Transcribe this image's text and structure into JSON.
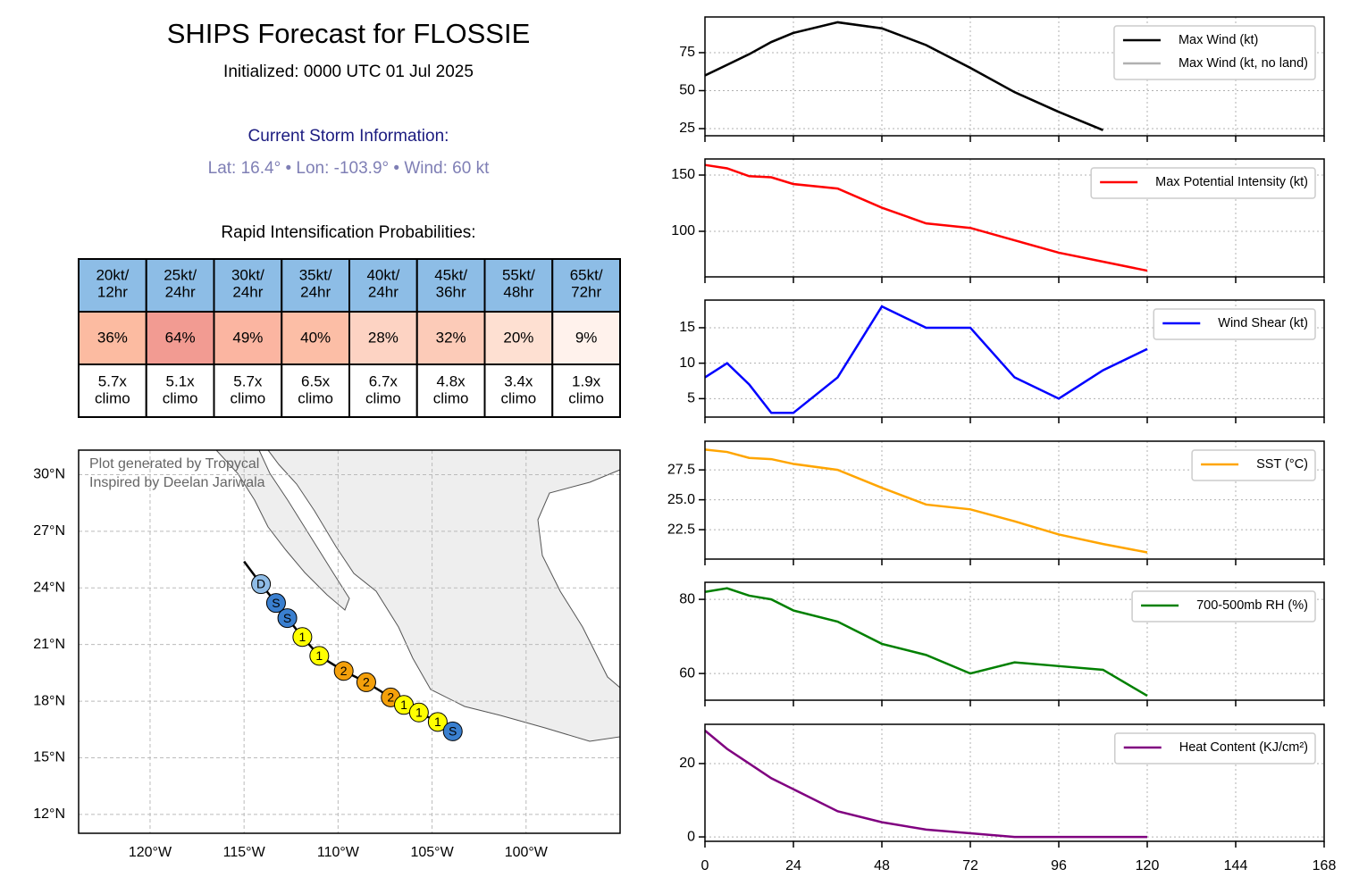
{
  "header": {
    "title": "SHIPS Forecast for FLOSSIE",
    "initialized": "Initialized: 0000 UTC 01 Jul 2025",
    "storm_heading": "Current Storm Information:",
    "storm_info": "Lat: 16.4° • Lon: -103.9° • Wind: 60 kt",
    "table_title": "Rapid Intensification Probabilities:"
  },
  "table": {
    "header": [
      [
        "20kt/",
        "12hr"
      ],
      [
        "25kt/",
        "24hr"
      ],
      [
        "30kt/",
        "24hr"
      ],
      [
        "35kt/",
        "24hr"
      ],
      [
        "40kt/",
        "24hr"
      ],
      [
        "45kt/",
        "36hr"
      ],
      [
        "55kt/",
        "48hr"
      ],
      [
        "65kt/",
        "72hr"
      ]
    ],
    "header_color": "#8dbde6",
    "probabilities": [
      "36%",
      "64%",
      "49%",
      "40%",
      "28%",
      "32%",
      "20%",
      "9%"
    ],
    "probability_colors": [
      "#fcbba1",
      "#f29b92",
      "#fbb5a1",
      "#fcbea6",
      "#fdd3c3",
      "#fccbb8",
      "#fee0d2",
      "#fff2ec"
    ],
    "climo": [
      [
        "5.7x",
        "climo"
      ],
      [
        "5.1x",
        "climo"
      ],
      [
        "5.7x",
        "climo"
      ],
      [
        "6.5x",
        "climo"
      ],
      [
        "6.7x",
        "climo"
      ],
      [
        "4.8x",
        "climo"
      ],
      [
        "3.4x",
        "climo"
      ],
      [
        "1.9x",
        "climo"
      ]
    ]
  },
  "map": {
    "texts": [
      "Plot generated by Tropycal",
      "Inspired by Deelan Jariwala"
    ],
    "xlim": [
      -123.8,
      -95
    ],
    "ylim": [
      11.0,
      31.3
    ],
    "xticks": [
      {
        "value": -120,
        "label": "120°W"
      },
      {
        "value": -115,
        "label": "115°W"
      },
      {
        "value": -110,
        "label": "110°W"
      },
      {
        "value": -105,
        "label": "105°W"
      },
      {
        "value": -100,
        "label": "100°W"
      }
    ],
    "yticks": [
      {
        "value": 12,
        "label": "12°N"
      },
      {
        "value": 15,
        "label": "15°N"
      },
      {
        "value": 18,
        "label": "18°N"
      },
      {
        "value": 21,
        "label": "21°N"
      },
      {
        "value": 24,
        "label": "24°N"
      },
      {
        "value": 27,
        "label": "27°N"
      },
      {
        "value": 30,
        "label": "30°N"
      }
    ],
    "lon": [
      -115.0,
      -114.1,
      -113.3,
      -112.7,
      -111.9,
      -111.0,
      -109.7,
      -108.5,
      -107.2,
      -106.5,
      -105.7,
      -104.7,
      -103.9
    ],
    "lat": [
      25.4,
      24.2,
      23.2,
      22.4,
      21.4,
      20.4,
      19.6,
      19.0,
      18.2,
      17.8,
      17.4,
      16.9,
      16.4
    ],
    "labels": [
      null,
      "D",
      "S",
      "S",
      "1",
      "1",
      "2",
      "2",
      "2",
      "1",
      "1",
      "1",
      "S"
    ],
    "colors": [
      null,
      "#8fbce6",
      "#3a7fcf",
      "#3a7fcf",
      "#ffff00",
      "#ffff00",
      "#f4a00b",
      "#f4a00b",
      "#f4a00b",
      "#ffff00",
      "#ffff00",
      "#ffff00",
      "#3a7fcf"
    ]
  },
  "chart_data": [
    {
      "type": "line",
      "x": [
        0,
        6,
        12,
        18,
        24,
        36,
        48,
        60,
        72,
        84,
        96,
        108
      ],
      "series": [
        {
          "name": "Max Wind (kt, no land)",
          "color": "#b0b0b0",
          "values": [
            60,
            67,
            74,
            82,
            88,
            95,
            91,
            80,
            65,
            49,
            36,
            24
          ],
          "legend_order": 1
        },
        {
          "name": "Max Wind (kt)",
          "color": "#000000",
          "values": [
            60,
            67,
            74,
            82,
            88,
            95,
            91,
            80,
            65,
            49,
            36,
            24
          ],
          "legend_order": 0
        }
      ],
      "xlim": [
        0,
        168
      ],
      "xticks": [
        0,
        24,
        48,
        72,
        96,
        120,
        144,
        168
      ],
      "ylim": [
        20.3,
        98.5
      ],
      "yticks": [
        25,
        50,
        75
      ],
      "grid": true,
      "legend": "upper right"
    },
    {
      "type": "line",
      "x": [
        0,
        6,
        12,
        18,
        24,
        36,
        48,
        60,
        72,
        84,
        96,
        108,
        120
      ],
      "series": [
        {
          "name": "Max Potential Intensity (kt)",
          "color": "#ff0000",
          "values": [
            159,
            156,
            149,
            148,
            142,
            138,
            121,
            107,
            103,
            92,
            81,
            73,
            65
          ],
          "legend_order": 0
        }
      ],
      "xlim": [
        0,
        168
      ],
      "xticks": [
        0,
        24,
        48,
        72,
        96,
        120,
        144,
        168
      ],
      "ylim": [
        59.5,
        164.3
      ],
      "yticks": [
        100,
        150
      ],
      "grid": true,
      "legend": "upper right"
    },
    {
      "type": "line",
      "x": [
        0,
        6,
        12,
        18,
        24,
        36,
        48,
        60,
        72,
        84,
        96,
        108,
        120
      ],
      "series": [
        {
          "name": "Wind Shear (kt)",
          "color": "#0000ff",
          "values": [
            8,
            10,
            7,
            3,
            3,
            8,
            18,
            15,
            15,
            8,
            5,
            9,
            12
          ],
          "legend_order": 0
        }
      ],
      "xlim": [
        0,
        168
      ],
      "xticks": [
        0,
        24,
        48,
        72,
        96,
        120,
        144,
        168
      ],
      "ylim": [
        2.4,
        18.9
      ],
      "yticks": [
        5,
        10,
        15
      ],
      "grid": true,
      "legend": "upper right"
    },
    {
      "type": "line",
      "x": [
        0,
        6,
        12,
        18,
        24,
        36,
        48,
        60,
        72,
        84,
        96,
        108,
        120
      ],
      "series": [
        {
          "name": "SST (°C)",
          "color": "#ffa500",
          "values": [
            29.2,
            29.0,
            28.5,
            28.4,
            28.0,
            27.5,
            26.0,
            24.6,
            24.2,
            23.2,
            22.1,
            21.3,
            20.6
          ],
          "legend_order": 0
        }
      ],
      "xlim": [
        0,
        168
      ],
      "xticks": [
        0,
        24,
        48,
        72,
        96,
        120,
        144,
        168
      ],
      "ylim": [
        20.04,
        29.9
      ],
      "yticks": [
        22.5,
        {
          "value": 25,
          "label": "25.0"
        },
        27.5
      ],
      "grid": true,
      "legend": "upper right"
    },
    {
      "type": "line",
      "x": [
        0,
        6,
        12,
        18,
        24,
        36,
        48,
        60,
        72,
        84,
        96,
        108,
        120
      ],
      "series": [
        {
          "name": "700-500mb RH (%)",
          "color": "#008000",
          "values": [
            82,
            83,
            81,
            80,
            77,
            74,
            68,
            65,
            60,
            63,
            62,
            61,
            54
          ],
          "legend_order": 0
        }
      ],
      "xlim": [
        0,
        168
      ],
      "xticks": [
        0,
        24,
        48,
        72,
        96,
        120,
        144,
        168
      ],
      "ylim": [
        52.8,
        84.6
      ],
      "yticks": [
        60,
        80
      ],
      "grid": true,
      "legend": "upper right"
    },
    {
      "type": "line",
      "x": [
        0,
        6,
        12,
        18,
        24,
        36,
        48,
        60,
        72,
        84,
        96,
        108,
        120
      ],
      "series": [
        {
          "name": "Heat Content (KJ/cm²)",
          "color": "#800080",
          "values": [
            29,
            24,
            20,
            16,
            13,
            7,
            4,
            2,
            1,
            0,
            0,
            0,
            0
          ],
          "legend_order": 0
        }
      ],
      "xlim": [
        0,
        168
      ],
      "xticks": [
        0,
        24,
        48,
        72,
        96,
        120,
        144,
        168
      ],
      "ylim": [
        -1.2,
        30.7
      ],
      "yticks": [
        0,
        20
      ],
      "grid": true,
      "legend": "upper right",
      "show_xtick_labels": true
    }
  ]
}
